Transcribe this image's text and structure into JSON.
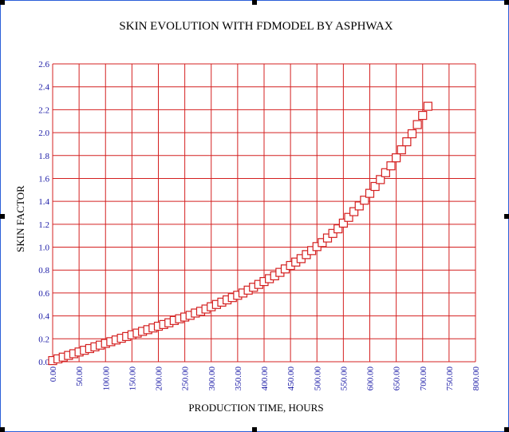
{
  "colors": {
    "grid": "#d42020",
    "marker": "#d42020",
    "tick_text": "#1a1aa6",
    "frame": "#2b5fd9"
  },
  "chart_data": {
    "type": "scatter",
    "title": "SKIN EVOLUTION WITH FDMODEL BY ASPHWAX",
    "xlabel": "PRODUCTION TIME, HOURS",
    "ylabel": "SKIN FACTOR",
    "xlim": [
      0,
      800
    ],
    "ylim": [
      0,
      2.6
    ],
    "grid": true,
    "legend": "none",
    "marker": "hollow-square",
    "x_ticks": [
      "0.00",
      "50.00",
      "100.00",
      "150.00",
      "200.00",
      "250.00",
      "300.00",
      "350.00",
      "400.00",
      "450.00",
      "500.00",
      "550.00",
      "600.00",
      "650.00",
      "700.00",
      "750.00",
      "800.00"
    ],
    "y_ticks": [
      "0.0",
      "0.2",
      "0.4",
      "0.6",
      "0.8",
      "1.0",
      "1.2",
      "1.4",
      "1.6",
      "1.8",
      "2.0",
      "2.2",
      "2.4",
      "2.6"
    ],
    "series": [
      {
        "x": [
          0,
          10,
          20,
          30,
          40,
          50,
          60,
          70,
          80,
          90,
          100,
          110,
          120,
          130,
          140,
          150,
          160,
          170,
          180,
          190,
          200,
          210,
          220,
          230,
          240,
          250,
          260,
          270,
          280,
          290,
          300,
          310,
          320,
          330,
          340,
          350,
          360,
          370,
          380,
          390,
          400,
          410,
          420,
          430,
          440,
          450,
          460,
          470,
          480,
          490,
          500,
          510,
          520,
          530,
          540,
          550,
          560,
          570,
          580,
          590,
          600,
          610,
          620,
          630,
          640,
          650,
          660,
          670,
          680,
          690,
          700,
          710
        ],
        "y": [
          0.01,
          0.025,
          0.04,
          0.055,
          0.07,
          0.085,
          0.1,
          0.115,
          0.13,
          0.145,
          0.16,
          0.175,
          0.19,
          0.205,
          0.22,
          0.235,
          0.25,
          0.265,
          0.28,
          0.295,
          0.31,
          0.325,
          0.34,
          0.36,
          0.375,
          0.39,
          0.405,
          0.425,
          0.44,
          0.46,
          0.48,
          0.5,
          0.52,
          0.54,
          0.56,
          0.58,
          0.6,
          0.625,
          0.65,
          0.675,
          0.7,
          0.725,
          0.75,
          0.78,
          0.81,
          0.84,
          0.87,
          0.9,
          0.935,
          0.97,
          1.005,
          1.04,
          1.08,
          1.12,
          1.16,
          1.21,
          1.26,
          1.31,
          1.36,
          1.41,
          1.47,
          1.53,
          1.59,
          1.65,
          1.71,
          1.78,
          1.85,
          1.92,
          1.99,
          2.07,
          2.15,
          2.23
        ]
      }
    ]
  }
}
